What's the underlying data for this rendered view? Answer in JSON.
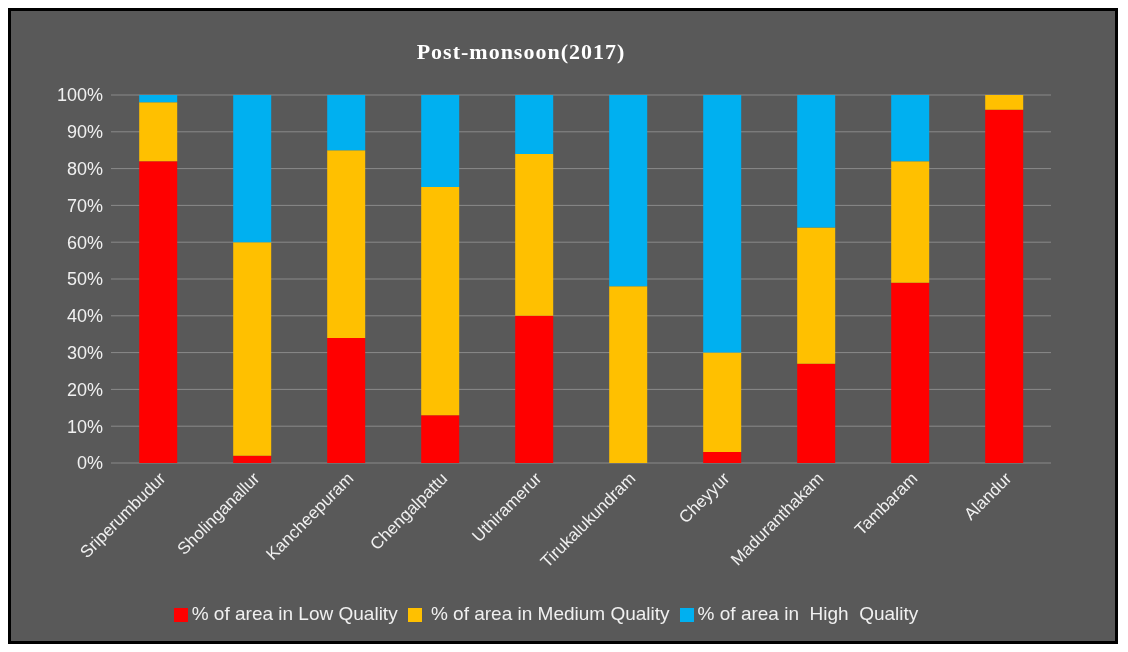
{
  "chart_data": {
    "type": "bar",
    "title": "Post-monsoon(2017)",
    "stacked": true,
    "categories": [
      "Sriperumbudur",
      "Sholinganallur",
      "Kancheepuram",
      "Chengalpattu",
      "Uthiramerur",
      "Tirukalukundram",
      "Cheyyur",
      "Maduranthakam",
      "Tambaram",
      "Alandur"
    ],
    "series": [
      {
        "name": "% of area in Low Quality",
        "color": "#ff0000",
        "values": [
          82,
          2,
          34,
          13,
          40,
          0,
          3,
          27,
          49,
          96
        ]
      },
      {
        "name": " % of area in Medium Quality",
        "color": "#ffc000",
        "values": [
          16,
          58,
          51,
          62,
          44,
          48,
          27,
          37,
          33,
          4
        ]
      },
      {
        "name": "% of area in  High  Quality",
        "color": "#00b0f0",
        "values": [
          2,
          40,
          15,
          25,
          16,
          52,
          70,
          36,
          18,
          0
        ]
      }
    ],
    "ylim": [
      0,
      100
    ],
    "yticks": [
      {
        "value": 0,
        "label": "0%"
      },
      {
        "value": 10,
        "label": "10%"
      },
      {
        "value": 20,
        "label": "20%"
      },
      {
        "value": 30,
        "label": "30%"
      },
      {
        "value": 40,
        "label": "40%"
      },
      {
        "value": 50,
        "label": "50%"
      },
      {
        "value": 60,
        "label": "60%"
      },
      {
        "value": 70,
        "label": "70%"
      },
      {
        "value": 80,
        "label": "80%"
      },
      {
        "value": 90,
        "label": "90%"
      },
      {
        "value": 100,
        "label": "100%"
      }
    ],
    "grid": "y",
    "legend": "bottom"
  }
}
